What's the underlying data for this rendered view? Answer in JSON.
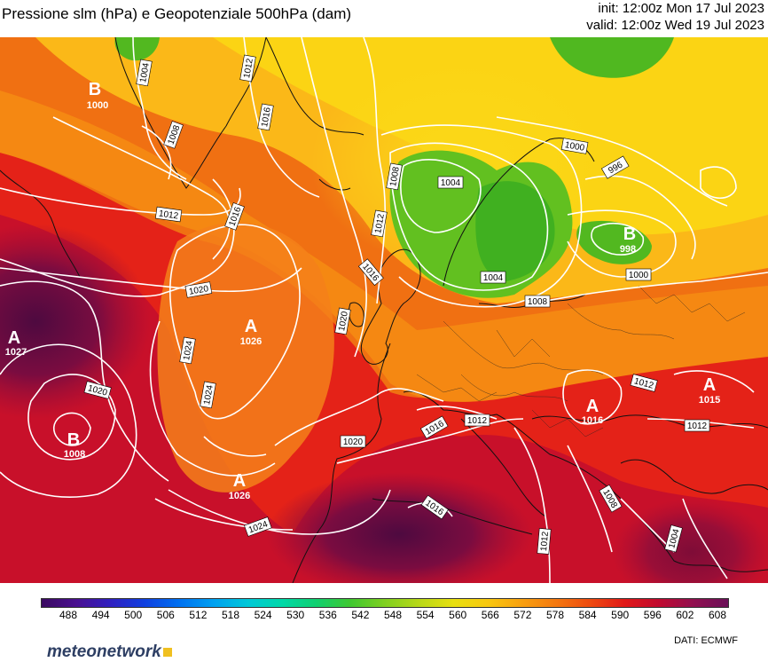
{
  "header": {
    "title": "Pressione slm (hPa) e Geopotenziale 500hPa (dam)",
    "init": "init: 12:00z Mon 17 Jul 2023",
    "valid": "valid: 12:00z Wed 19 Jul 2023"
  },
  "colors": {
    "deep_purple": "#5a0a3e",
    "dark_red": "#b00a2a",
    "red": "#e81010",
    "orange_red": "#f24a10",
    "orange": "#f88a10",
    "light_orange": "#fbb010",
    "yellow": "#fbd010",
    "light_green": "#8ed020",
    "green": "#40b020",
    "contour": "#ffffff",
    "coast": "#111111"
  },
  "isobar_labels": [
    "1004",
    "1012",
    "1016",
    "1008",
    "1012",
    "1016",
    "1020",
    "1008",
    "1004",
    "1012",
    "1016",
    "1000",
    "996",
    "1000",
    "1004",
    "1008",
    "1020",
    "1024",
    "1024",
    "1020",
    "1020",
    "1016",
    "1012",
    "1012",
    "1012",
    "1016",
    "1012",
    "1008",
    "1004",
    "1024"
  ],
  "pressure_centers": [
    {
      "type": "B",
      "value": "1000"
    },
    {
      "type": "A",
      "value": "1027"
    },
    {
      "type": "A",
      "value": "1026"
    },
    {
      "type": "B",
      "value": "1008"
    },
    {
      "type": "A",
      "value": "1026"
    },
    {
      "type": "B",
      "value": "998"
    },
    {
      "type": "A",
      "value": "1016"
    },
    {
      "type": "A",
      "value": "1015"
    }
  ],
  "colorbar": {
    "ticks": [
      "488",
      "494",
      "500",
      "506",
      "512",
      "518",
      "524",
      "530",
      "536",
      "542",
      "548",
      "554",
      "560",
      "566",
      "572",
      "578",
      "584",
      "590",
      "596",
      "602",
      "608"
    ],
    "colors": [
      "#3a0a60",
      "#4a1090",
      "#3020c0",
      "#1040e0",
      "#0070f0",
      "#00a0f0",
      "#00c8d8",
      "#00d8a8",
      "#10d070",
      "#40c830",
      "#80d020",
      "#b8d818",
      "#e8e010",
      "#f8c810",
      "#f8a010",
      "#f47810",
      "#ee4a10",
      "#e01818",
      "#c00a30",
      "#901050",
      "#6a1058"
    ]
  },
  "footer": {
    "logo": "meteonetwork",
    "dati": "DATI:  ECMWF"
  }
}
